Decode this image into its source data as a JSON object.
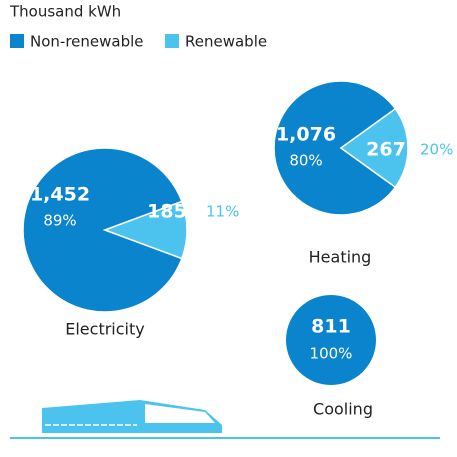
{
  "chart_data": [
    {
      "type": "pie",
      "unit": "Thousand kWh",
      "title": "Electricity",
      "categories": [
        "Non-renewable",
        "Renewable"
      ],
      "colors": [
        "#0a84cc",
        "#4cc3ee"
      ],
      "values": [
        1452,
        185
      ],
      "value_labels": [
        "1,452",
        "185"
      ],
      "percents": [
        89,
        11
      ],
      "percent_labels": [
        "89%",
        "11%"
      ]
    },
    {
      "type": "pie",
      "title": "Heating",
      "categories": [
        "Non-renewable",
        "Renewable"
      ],
      "colors": [
        "#0a84cc",
        "#4cc3ee"
      ],
      "values": [
        1076,
        267
      ],
      "value_labels": [
        "1,076",
        "267"
      ],
      "percents": [
        80,
        20
      ],
      "percent_labels": [
        "80%",
        "20%"
      ]
    },
    {
      "type": "pie",
      "title": "Cooling",
      "categories": [
        "Non-renewable"
      ],
      "colors": [
        "#0a84cc"
      ],
      "values": [
        811
      ],
      "percents": [
        100
      ],
      "percent_labels": [
        "100%"
      ]
    }
  ]
}
